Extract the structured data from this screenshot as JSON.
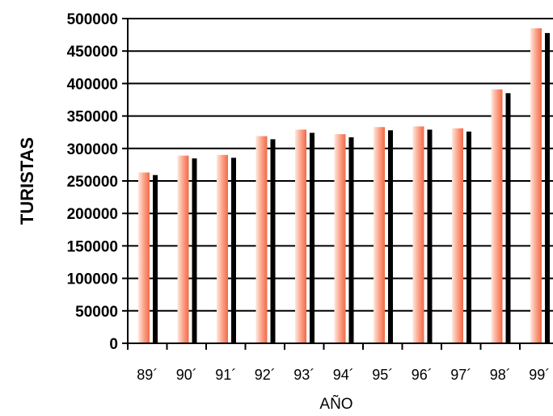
{
  "chart_data": {
    "type": "bar",
    "title": "",
    "xlabel": "AÑO",
    "ylabel": "TURISTAS",
    "categories": [
      "89´",
      "90´",
      "91´",
      "92´",
      "93´",
      "94´",
      "95´",
      "96´",
      "97´",
      "98´",
      "99´"
    ],
    "values": [
      263000,
      289000,
      290000,
      319000,
      329000,
      322000,
      333000,
      334000,
      331000,
      391000,
      485000
    ],
    "ylim": [
      0,
      500000
    ],
    "yticks": [
      0,
      50000,
      100000,
      150000,
      200000,
      250000,
      300000,
      350000,
      400000,
      450000,
      500000
    ],
    "grid": true,
    "legend": "none",
    "colors": {
      "bar_light": "#ffe8dc",
      "bar_mid": "#fa9a80",
      "bar_dark": "#f07050",
      "shadow": "#000000",
      "axis": "#000000",
      "grid": "#000000"
    }
  }
}
